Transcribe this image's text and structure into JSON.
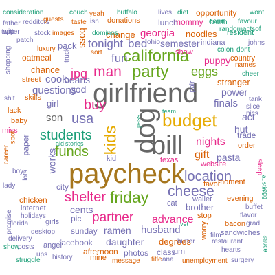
{
  "palette": {
    "teal": "#1b9e77",
    "orange": "#d95f02",
    "purple": "#7570b3",
    "magenta": "#e7298a",
    "green": "#66a61e",
    "gold": "#e6ab02",
    "brown": "#a6761d",
    "gray": "#666666"
  },
  "words": [
    {
      "text": "girlfriend",
      "color": "gray"
    },
    {
      "text": "paycheck",
      "color": "brown"
    },
    {
      "text": "dog",
      "color": "gray"
    },
    {
      "text": "bill",
      "color": "gray"
    },
    {
      "text": "kids",
      "color": "gold"
    },
    {
      "text": "budget",
      "color": "gold"
    },
    {
      "text": "california",
      "color": "green"
    },
    {
      "text": "party",
      "color": "green"
    },
    {
      "text": "friday",
      "color": "green"
    },
    {
      "text": "cheese",
      "color": "purple"
    },
    {
      "text": "location",
      "color": "purple"
    },
    {
      "text": "shelter",
      "color": "magenta"
    },
    {
      "text": "partner",
      "color": "magenta"
    },
    {
      "text": "man",
      "color": "magenta"
    },
    {
      "text": "usa",
      "color": "purple"
    },
    {
      "text": "students",
      "color": "teal"
    },
    {
      "text": "funds",
      "color": "green"
    },
    {
      "text": "buy",
      "color": "magenta"
    },
    {
      "text": "jpg",
      "color": "magenta"
    },
    {
      "text": "advance",
      "color": "magenta"
    },
    {
      "text": "eggs",
      "color": "green"
    },
    {
      "text": "nights",
      "color": "magenta"
    },
    {
      "text": "gift",
      "color": "orange"
    },
    {
      "text": "pasta",
      "color": "purple"
    },
    {
      "text": "tonight",
      "color": "purple"
    },
    {
      "text": "bed",
      "color": "purple"
    },
    {
      "text": "fun",
      "color": "purple"
    },
    {
      "text": "beans",
      "color": "purple"
    },
    {
      "text": "questions",
      "color": "purple"
    },
    {
      "text": "cook",
      "color": "purple"
    },
    {
      "text": "god",
      "color": "purple"
    },
    {
      "text": "son",
      "color": "gray"
    },
    {
      "text": "girl",
      "color": "purple"
    },
    {
      "text": "works",
      "color": "purple"
    },
    {
      "text": "finals",
      "color": "purple"
    },
    {
      "text": "act",
      "color": "purple"
    },
    {
      "text": "hut",
      "color": "purple"
    },
    {
      "text": "power",
      "color": "purple"
    },
    {
      "text": "stranger",
      "color": "orange"
    },
    {
      "text": "puppy",
      "color": "magenta"
    },
    {
      "text": "georgia",
      "color": "magenta"
    },
    {
      "text": "semester",
      "color": "purple"
    },
    {
      "text": "lunch",
      "color": "purple"
    },
    {
      "text": "noodles",
      "color": "orange"
    },
    {
      "text": "mommy",
      "color": "magenta"
    },
    {
      "text": "change",
      "color": "orange"
    },
    {
      "text": "pack",
      "color": "purple"
    },
    {
      "text": "boss",
      "color": "orange"
    },
    {
      "text": "ramen",
      "color": "purple"
    },
    {
      "text": "husband",
      "color": "purple"
    },
    {
      "text": "daughter",
      "color": "purple"
    },
    {
      "text": "degrees",
      "color": "orange"
    },
    {
      "text": "brother",
      "color": "purple"
    },
    {
      "text": "cents",
      "color": "purple"
    },
    {
      "text": "pic",
      "color": "purple"
    },
    {
      "text": "sunday",
      "color": "purple"
    },
    {
      "text": "facebook",
      "color": "purple"
    },
    {
      "text": "photos",
      "color": "purple"
    },
    {
      "text": "class",
      "color": "purple"
    },
    {
      "text": "afternoon",
      "color": "orange"
    },
    {
      "text": "texas",
      "color": "magenta"
    },
    {
      "text": "city",
      "color": "purple"
    },
    {
      "text": "chicken",
      "color": "orange"
    },
    {
      "text": "internet",
      "color": "purple"
    },
    {
      "text": "chance",
      "color": "orange"
    },
    {
      "text": "oatmeal",
      "color": "orange"
    },
    {
      "text": "street",
      "color": "orange"
    },
    {
      "text": "skills",
      "color": "orange"
    },
    {
      "text": "lack",
      "color": "orange"
    },
    {
      "text": "baby",
      "color": "orange"
    },
    {
      "text": "miss",
      "color": "magenta"
    },
    {
      "text": "paper",
      "color": "purple"
    },
    {
      "text": "moment",
      "color": "orange"
    },
    {
      "text": "evening",
      "color": "orange"
    },
    {
      "text": "wallet",
      "color": "purple"
    },
    {
      "text": "favor",
      "color": "orange"
    },
    {
      "text": "stop",
      "color": "orange"
    },
    {
      "text": "bacon",
      "color": "orange"
    },
    {
      "text": "trade",
      "color": "purple"
    },
    {
      "text": "order",
      "color": "orange"
    },
    {
      "text": "website",
      "color": "magenta"
    },
    {
      "text": "cat",
      "color": "purple"
    },
    {
      "text": "kid",
      "color": "purple"
    },
    {
      "text": "fourth",
      "color": "teal"
    },
    {
      "text": "twitter",
      "color": "purple"
    },
    {
      "text": "shit",
      "color": "purple"
    },
    {
      "text": "slice",
      "color": "purple"
    },
    {
      "text": "pics",
      "color": "purple"
    },
    {
      "text": "consideration",
      "color": "teal"
    },
    {
      "text": "guests",
      "color": "orange"
    },
    {
      "text": "couch",
      "color": "teal"
    },
    {
      "text": "buffalo",
      "color": "teal"
    },
    {
      "text": "lives",
      "color": "purple"
    },
    {
      "text": "diet",
      "color": "teal"
    },
    {
      "text": "opportunity",
      "color": "orange"
    },
    {
      "text": "wont",
      "color": "teal"
    },
    {
      "text": "yeah",
      "color": "orange"
    },
    {
      "text": "donations",
      "color": "orange"
    },
    {
      "text": "dorm",
      "color": "teal"
    },
    {
      "text": "favour",
      "color": "teal"
    },
    {
      "text": "father",
      "color": "purple"
    },
    {
      "text": "redditors",
      "color": "purple"
    },
    {
      "text": "taste",
      "color": "orange"
    },
    {
      "text": "isn",
      "color": "purple"
    },
    {
      "text": "randomactsof",
      "color": "teal"
    },
    {
      "text": "app",
      "color": "purple"
    },
    {
      "text": "stock",
      "color": "purple"
    },
    {
      "text": "images",
      "color": "orange"
    },
    {
      "text": "dominos",
      "color": "teal"
    },
    {
      "text": "resident",
      "color": "teal"
    },
    {
      "text": "patch",
      "color": "purple"
    },
    {
      "text": "ohio",
      "color": "purple"
    },
    {
      "text": "indiana",
      "color": "purple"
    },
    {
      "text": "johns",
      "color": "purple"
    },
    {
      "text": "colon",
      "color": "teal"
    },
    {
      "text": "dont",
      "color": "teal"
    },
    {
      "text": "luxury",
      "color": "orange"
    },
    {
      "text": "sort",
      "color": "orange"
    },
    {
      "text": "show",
      "color": "magenta"
    },
    {
      "text": "names",
      "color": "orange"
    },
    {
      "text": "country",
      "color": "orange"
    },
    {
      "text": "shopping",
      "color": "purple"
    },
    {
      "text": "truck",
      "color": "purple"
    },
    {
      "text": "pair",
      "color": "purple"
    },
    {
      "text": "cheer",
      "color": "teal"
    },
    {
      "text": "tank",
      "color": "purple"
    },
    {
      "text": "team",
      "color": "teal"
    },
    {
      "text": "pass",
      "color": "teal"
    },
    {
      "text": "career",
      "color": "orange"
    },
    {
      "text": "spot",
      "color": "orange"
    },
    {
      "text": "lady",
      "color": "purple"
    },
    {
      "text": "boy",
      "color": "purple"
    },
    {
      "text": "aid",
      "color": "teal"
    },
    {
      "text": "stories",
      "color": "teal"
    },
    {
      "text": "lots",
      "color": "purple"
    },
    {
      "text": "sleep",
      "color": "magenta"
    },
    {
      "text": "austin",
      "color": "teal"
    },
    {
      "text": "egg",
      "color": "teal"
    },
    {
      "text": "promise",
      "color": "purple"
    },
    {
      "text": "holidays",
      "color": "purple"
    },
    {
      "text": "florida",
      "color": "purple"
    },
    {
      "text": "girls",
      "color": "purple"
    },
    {
      "text": "desktop",
      "color": "purple"
    },
    {
      "text": "delivery",
      "color": "purple"
    },
    {
      "text": "posts",
      "color": "purple"
    },
    {
      "text": "angel",
      "color": "purple"
    },
    {
      "text": "history",
      "color": "purple"
    },
    {
      "text": "mine",
      "color": "orange"
    },
    {
      "text": "message",
      "color": "orange"
    },
    {
      "text": "title",
      "color": "orange"
    },
    {
      "text": "ana",
      "color": "purple"
    },
    {
      "text": "unemployment",
      "color": "orange"
    },
    {
      "text": "surgery",
      "color": "purple"
    },
    {
      "text": "show",
      "color": "teal"
    },
    {
      "text": "struggle",
      "color": "teal"
    },
    {
      "text": "sandwiches",
      "color": "purple"
    },
    {
      "text": "buffet",
      "color": "purple"
    },
    {
      "text": "flavor",
      "color": "purple"
    },
    {
      "text": "film",
      "color": "purple"
    },
    {
      "text": "turn",
      "color": "purple"
    },
    {
      "text": "butter",
      "color": "purple"
    },
    {
      "text": "hearts",
      "color": "purple"
    },
    {
      "text": "restaurant",
      "color": "purple"
    },
    {
      "text": "grad",
      "color": "purple"
    },
    {
      "text": "sauce",
      "color": "teal"
    },
    {
      "text": "vet",
      "color": "teal"
    },
    {
      "text": "worry",
      "color": "orange"
    },
    {
      "text": "ups",
      "color": "purple"
    }
  ]
}
